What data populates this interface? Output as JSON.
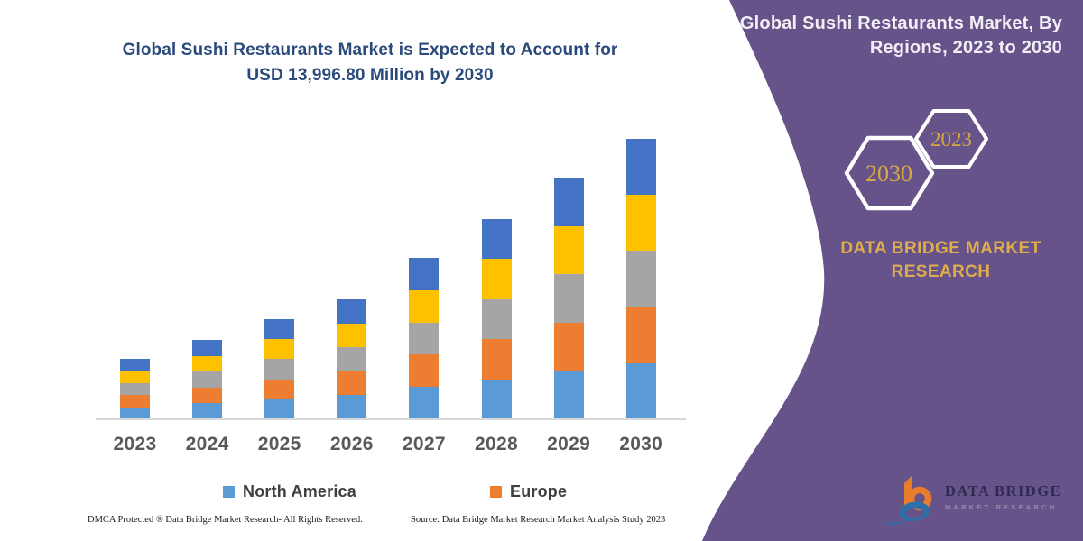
{
  "main_title": {
    "line1": "Global Sushi Restaurants Market is Expected to Account for",
    "line2": "USD 13,996.80 Million by 2030"
  },
  "chart_data": {
    "type": "bar",
    "stacked": true,
    "title": "Global Sushi Restaurants Market is Expected to Account for USD 13,996.80 Million by 2030",
    "unit": "USD Million",
    "categories": [
      "2023",
      "2024",
      "2025",
      "2026",
      "2027",
      "2028",
      "2029",
      "2030"
    ],
    "totals_estimated": [
      3015,
      3960,
      4995,
      5985,
      8055,
      9990,
      12060,
      13996.8
    ],
    "annotation": "USD 13,996.80 Million by 2030",
    "series": [
      {
        "name": "North America",
        "color": "#5B9BD5",
        "values": [
          603,
          792,
          999,
          1197,
          1611,
          1998,
          2412,
          2799.4
        ]
      },
      {
        "name": "Europe",
        "color": "#ED7D31",
        "values": [
          603,
          792,
          999,
          1197,
          1611,
          1998,
          2412,
          2799.4
        ]
      },
      {
        "name": "",
        "color": "#A5A5A5",
        "values": [
          603,
          792,
          999,
          1197,
          1611,
          1998,
          2412,
          2799.4
        ]
      },
      {
        "name": "",
        "color": "#FFC000",
        "values": [
          603,
          792,
          999,
          1197,
          1611,
          1998,
          2412,
          2799.4
        ]
      },
      {
        "name": "",
        "color": "#4472C4",
        "values": [
          603,
          792,
          999,
          1197,
          1611,
          1998,
          2412,
          2799.4
        ]
      }
    ],
    "legend": [
      {
        "label": "North America",
        "color": "#5B9BD5"
      },
      {
        "label": "Europe",
        "color": "#ED7D31"
      }
    ],
    "legend_position": "bottom",
    "grid": false,
    "y_axis_visible": false,
    "ylim": [
      0,
      14000
    ]
  },
  "footer": {
    "left": "DMCA Protected ® Data Bridge Market Research-  All Rights Reserved.",
    "right": "Source: Data Bridge Market Research  Market Analysis Study 2023"
  },
  "panel": {
    "title_line1": "Global Sushi Restaurants Market, By",
    "title_line2": "Regions, 2023 to 2030",
    "hexagons": [
      {
        "label": "2030"
      },
      {
        "label": "2023"
      }
    ],
    "brand_line1": "DATA BRIDGE MARKET",
    "brand_line2": "RESEARCH",
    "logo": {
      "wordmark": "DATA BRIDGE",
      "subtext": "MARKET RESEARCH"
    },
    "colors": {
      "panel": "#655389",
      "gold": "#DFAC4E",
      "hex_text": "#D9A843",
      "title_text": "#F2EEF6"
    }
  }
}
